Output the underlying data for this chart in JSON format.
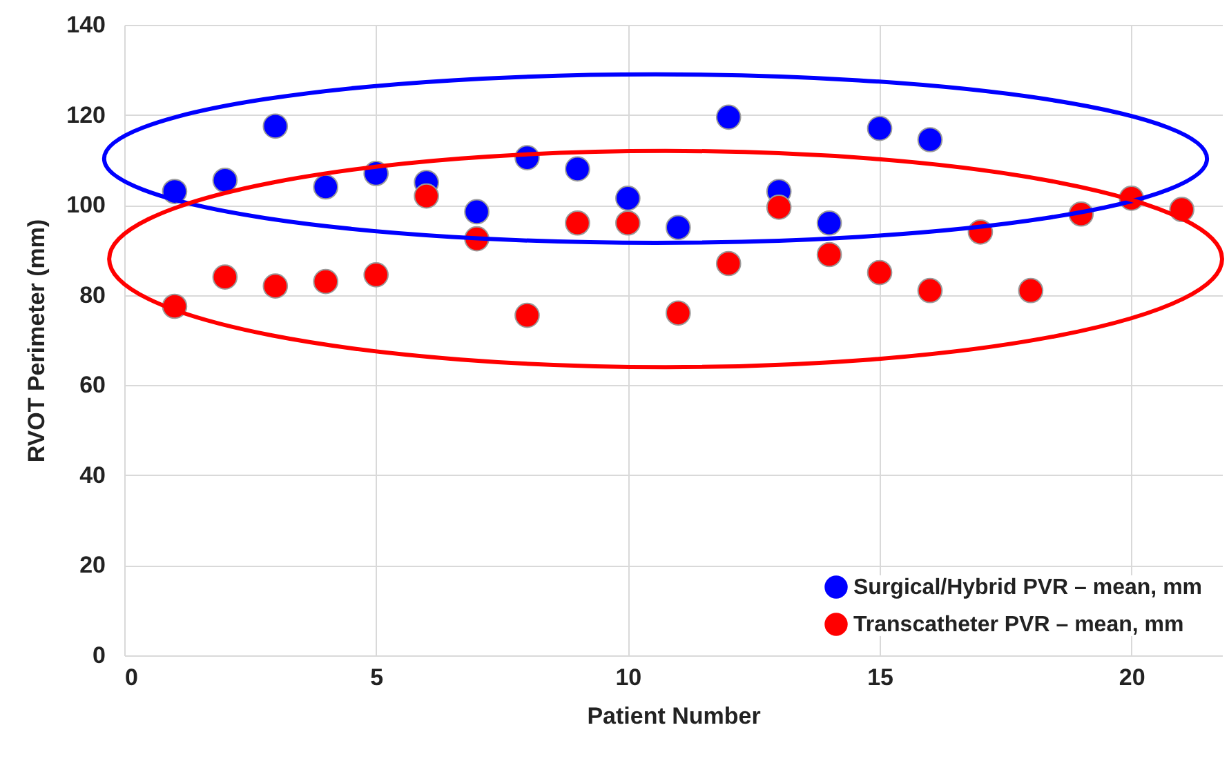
{
  "chart_data": {
    "type": "scatter",
    "xlabel": "Patient Number",
    "ylabel": "RVOT Perimeter (mm)",
    "xlim": [
      0,
      21.8
    ],
    "xticks": [
      0,
      5,
      10,
      15,
      20
    ],
    "ylim": [
      0,
      140
    ],
    "yticks": [
      0,
      20,
      40,
      60,
      80,
      100,
      120,
      140
    ],
    "grid": true,
    "legend": "bottom right",
    "marker": "circle",
    "series": [
      {
        "name": "Surgical/Hybrid PVR – mean, mm",
        "color": "#0000ff",
        "x": [
          1,
          2,
          3,
          4,
          5,
          6,
          7,
          8,
          9,
          10,
          11,
          12,
          13,
          14,
          15,
          16
        ],
        "values": [
          103,
          105.5,
          117.5,
          104,
          107,
          105,
          98.5,
          110.5,
          108,
          101.5,
          95,
          119.5,
          103,
          96,
          117,
          114.5
        ]
      },
      {
        "name": "Transcatheter PVR – mean, mm",
        "color": "#ff0000",
        "x": [
          1,
          2,
          3,
          4,
          5,
          6,
          7,
          8,
          9,
          10,
          11,
          12,
          13,
          14,
          15,
          16,
          17,
          18,
          19,
          20,
          21
        ],
        "values": [
          77.5,
          84,
          82,
          83,
          84.5,
          102,
          92.5,
          75.5,
          96,
          96,
          76,
          87,
          99.5,
          89,
          85,
          81,
          94,
          81,
          98,
          101.5,
          99
        ]
      }
    ]
  }
}
